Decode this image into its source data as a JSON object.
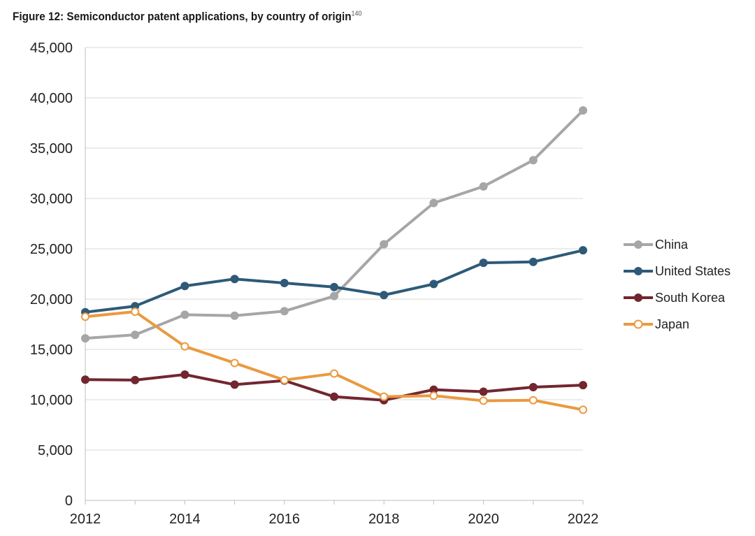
{
  "chart_data": {
    "type": "line",
    "title": "Figure 12: Semiconductor patent applications, by country of origin",
    "title_footnote": "140",
    "xlabel": "",
    "ylabel": "",
    "x": [
      2012,
      2013,
      2014,
      2015,
      2016,
      2017,
      2018,
      2019,
      2020,
      2021,
      2022
    ],
    "x_ticks": [
      "2012",
      "2014",
      "2016",
      "2018",
      "2020",
      "2022"
    ],
    "ylim": [
      0,
      45000
    ],
    "y_ticks": [
      "0",
      "5,000",
      "10,000",
      "15,000",
      "20,000",
      "25,000",
      "30,000",
      "35,000",
      "40,000",
      "45,000"
    ],
    "grid": "horizontal",
    "legend_position": "right",
    "series": [
      {
        "name": "China",
        "color": "#a6a6a6",
        "marker": "filled",
        "values": [
          16100,
          16450,
          18450,
          18350,
          18800,
          20300,
          25450,
          29550,
          31200,
          33800,
          38750
        ]
      },
      {
        "name": "United States",
        "color": "#2e5a78",
        "marker": "filled",
        "values": [
          18700,
          19300,
          21300,
          22000,
          21600,
          21200,
          20400,
          21500,
          23600,
          23700,
          24850
        ]
      },
      {
        "name": "South Korea",
        "color": "#722630",
        "marker": "filled",
        "values": [
          12000,
          11950,
          12500,
          11500,
          11900,
          10300,
          9950,
          11000,
          10800,
          11250,
          11450
        ]
      },
      {
        "name": "Japan",
        "color": "#e99a3f",
        "marker": "hollow",
        "values": [
          18250,
          18750,
          15300,
          13650,
          11950,
          12600,
          10300,
          10400,
          9900,
          9950,
          9000
        ]
      }
    ]
  }
}
